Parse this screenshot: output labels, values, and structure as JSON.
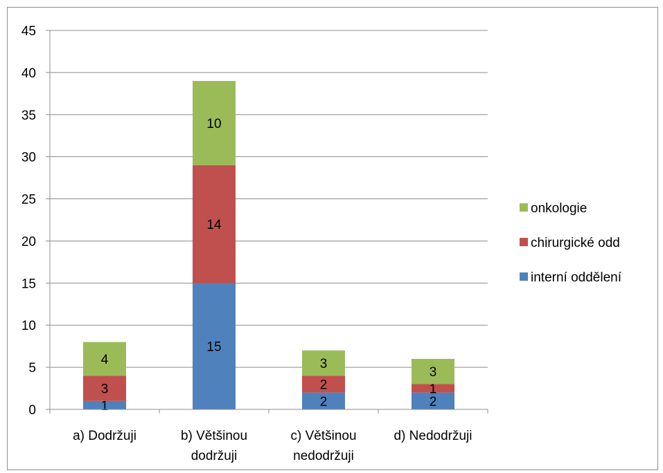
{
  "chart_data": {
    "type": "bar",
    "stacked": true,
    "categories": [
      [
        "a) Dodržuji"
      ],
      [
        "b) Většinou",
        "dodržuji"
      ],
      [
        "c) Většinou",
        "nedodržuji"
      ],
      [
        "d) Nedodržuji"
      ]
    ],
    "series": [
      {
        "name": "interní oddělení",
        "color": "#4f81bd",
        "values": [
          1,
          15,
          2,
          2
        ]
      },
      {
        "name": "chirurgické odd",
        "color": "#c0504d",
        "values": [
          3,
          14,
          2,
          1
        ]
      },
      {
        "name": "onkologie",
        "color": "#9bbb59",
        "values": [
          4,
          10,
          3,
          3
        ]
      }
    ],
    "ylim": [
      0,
      45
    ],
    "yticks": [
      0,
      5,
      10,
      15,
      20,
      25,
      30,
      35,
      40,
      45
    ],
    "grid": true,
    "legend_position": "right",
    "title": "",
    "xlabel": "",
    "ylabel": ""
  }
}
